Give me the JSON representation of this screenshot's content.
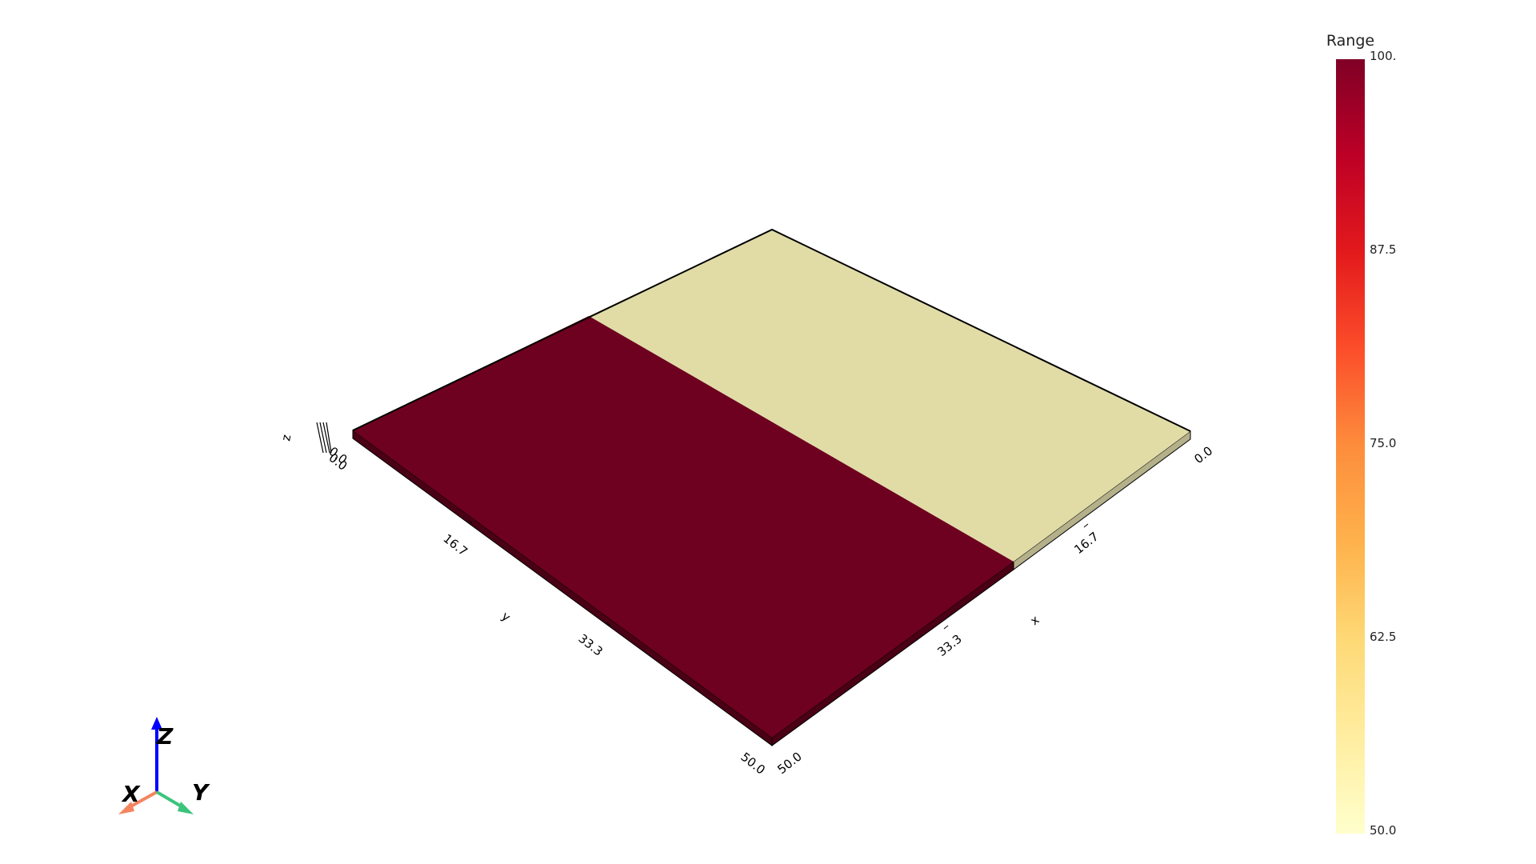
{
  "scene": {
    "slab_top_color": "#e1dca6",
    "slab_side_color": "#b4b08a",
    "slab_edge_color": "#000000",
    "highlight_top_color": "#6e0020",
    "highlight_side_color": "#4a0015",
    "background_color": "#ffffff"
  },
  "axes": {
    "y_label": "y",
    "x_label": "x",
    "z_label": "z",
    "y_ticks": [
      "0.0",
      "16.7",
      "33.3",
      "50.0"
    ],
    "x_ticks": [
      "0.0",
      "16.7",
      "33.3",
      "50.0"
    ],
    "z_tick": "0.0"
  },
  "colorbar": {
    "title": "Range",
    "ticks": [
      "100.",
      "87.5",
      "75.0",
      "62.5",
      "50.0"
    ],
    "min": 50.0,
    "max": 100.0,
    "colormap": "YlOrRd",
    "stops": [
      "#ffffcc",
      "#ffeda0",
      "#fed976",
      "#feb24c",
      "#fd8d3c",
      "#fc4e2a",
      "#e31a1c",
      "#bd0026",
      "#800026"
    ]
  },
  "orientation_widget": {
    "x_label": "X",
    "y_label": "Y",
    "z_label": "Z",
    "x_color": "#f4845f",
    "y_color": "#3cc47c",
    "z_color": "#0000ff"
  }
}
